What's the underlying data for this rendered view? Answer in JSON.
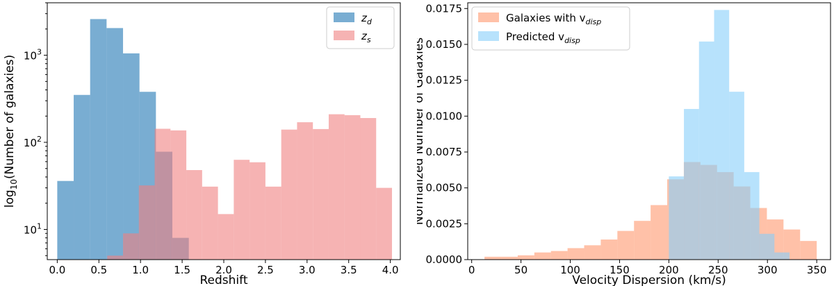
{
  "chart_data": [
    {
      "type": "histogram",
      "title": "",
      "xlabel": "Redshift",
      "ylabel_main": "log",
      "ylabel_sub": "10",
      "ylabel_rest": "(Number of galaxies)",
      "xlim": [
        -0.12,
        4.12
      ],
      "ylim": [
        4.5,
        4000
      ],
      "yscale": "log",
      "xticks": [
        0.0,
        0.5,
        1.0,
        1.5,
        2.0,
        2.5,
        3.0,
        3.5,
        4.0
      ],
      "xtick_labels": [
        "0.0",
        "0.5",
        "1.0",
        "1.5",
        "2.0",
        "2.5",
        "3.0",
        "3.5",
        "4.0"
      ],
      "yticks": [
        10,
        100,
        1000
      ],
      "ytick_labels": [
        {
          "base": "10",
          "exp": "1"
        },
        {
          "base": "10",
          "exp": "2"
        },
        {
          "base": "10",
          "exp": "3"
        }
      ],
      "legend_position": "top-right",
      "series": [
        {
          "name": "z",
          "name_sub": "d",
          "color": "#1f77b4",
          "opacity": 0.6,
          "bin_edges": [
            0.0,
            0.1975,
            0.395,
            0.5925,
            0.79,
            0.9875,
            1.185,
            1.3825,
            1.58
          ],
          "counts": [
            36,
            350,
            2600,
            2050,
            1050,
            380,
            78,
            8
          ]
        },
        {
          "name": "z",
          "name_sub": "s",
          "color": "#f08080",
          "opacity": 0.6,
          "bin_edges": [
            0.6,
            0.79,
            0.98,
            1.17,
            1.36,
            1.55,
            1.74,
            1.93,
            2.12,
            2.31,
            2.5,
            2.69,
            2.88,
            3.07,
            3.26,
            3.45,
            3.64,
            3.83,
            4.02
          ],
          "counts": [
            5,
            9,
            32,
            143,
            137,
            48,
            31,
            15,
            63,
            59,
            31,
            140,
            170,
            142,
            210,
            205,
            190,
            30
          ]
        }
      ]
    },
    {
      "type": "histogram",
      "title": "",
      "xlabel": "Velocity Dispersion (km/s)",
      "ylabel": "Normalized Number of Galaxies",
      "xlim": [
        -4,
        364
      ],
      "ylim": [
        0,
        0.0179
      ],
      "yscale": "linear",
      "xticks": [
        0,
        50,
        100,
        150,
        200,
        250,
        300,
        350
      ],
      "xtick_labels": [
        "0",
        "50",
        "100",
        "150",
        "200",
        "250",
        "300",
        "350"
      ],
      "yticks": [
        0.0,
        0.0025,
        0.005,
        0.0075,
        0.01,
        0.0125,
        0.015,
        0.0175
      ],
      "ytick_labels": [
        "0.0000",
        "0.0025",
        "0.0050",
        "0.0075",
        "0.0100",
        "0.0125",
        "0.0150",
        "0.0175"
      ],
      "legend_position": "top-left",
      "series": [
        {
          "name": "Galaxies with v",
          "name_sub": "disp",
          "color": "#ffa07a",
          "opacity": 0.65,
          "bin_edges": [
            13,
            29.85,
            46.7,
            63.55,
            80.4,
            97.25,
            114.1,
            130.95,
            147.8,
            164.65,
            181.5,
            198.35,
            215.2,
            232.05,
            248.9,
            265.75,
            282.6,
            299.45,
            316.3,
            333.15,
            350
          ],
          "counts": [
            0.0002,
            0.0002,
            0.0003,
            0.0005,
            0.0006,
            0.0008,
            0.001,
            0.0014,
            0.002,
            0.0027,
            0.0038,
            0.0056,
            0.0068,
            0.0066,
            0.0061,
            0.0051,
            0.0036,
            0.0028,
            0.0021,
            0.0013
          ]
        },
        {
          "name": "Predicted v",
          "name_sub": "disp",
          "color": "#87cefa",
          "opacity": 0.6,
          "bin_edges": [
            200,
            215.3,
            230.6,
            245.9,
            261.2,
            276.5,
            291.8,
            307.1,
            322.4
          ],
          "counts": [
            0.0058,
            0.0105,
            0.0152,
            0.0174,
            0.0117,
            0.0061,
            0.0018,
            0.0005
          ]
        }
      ]
    }
  ]
}
